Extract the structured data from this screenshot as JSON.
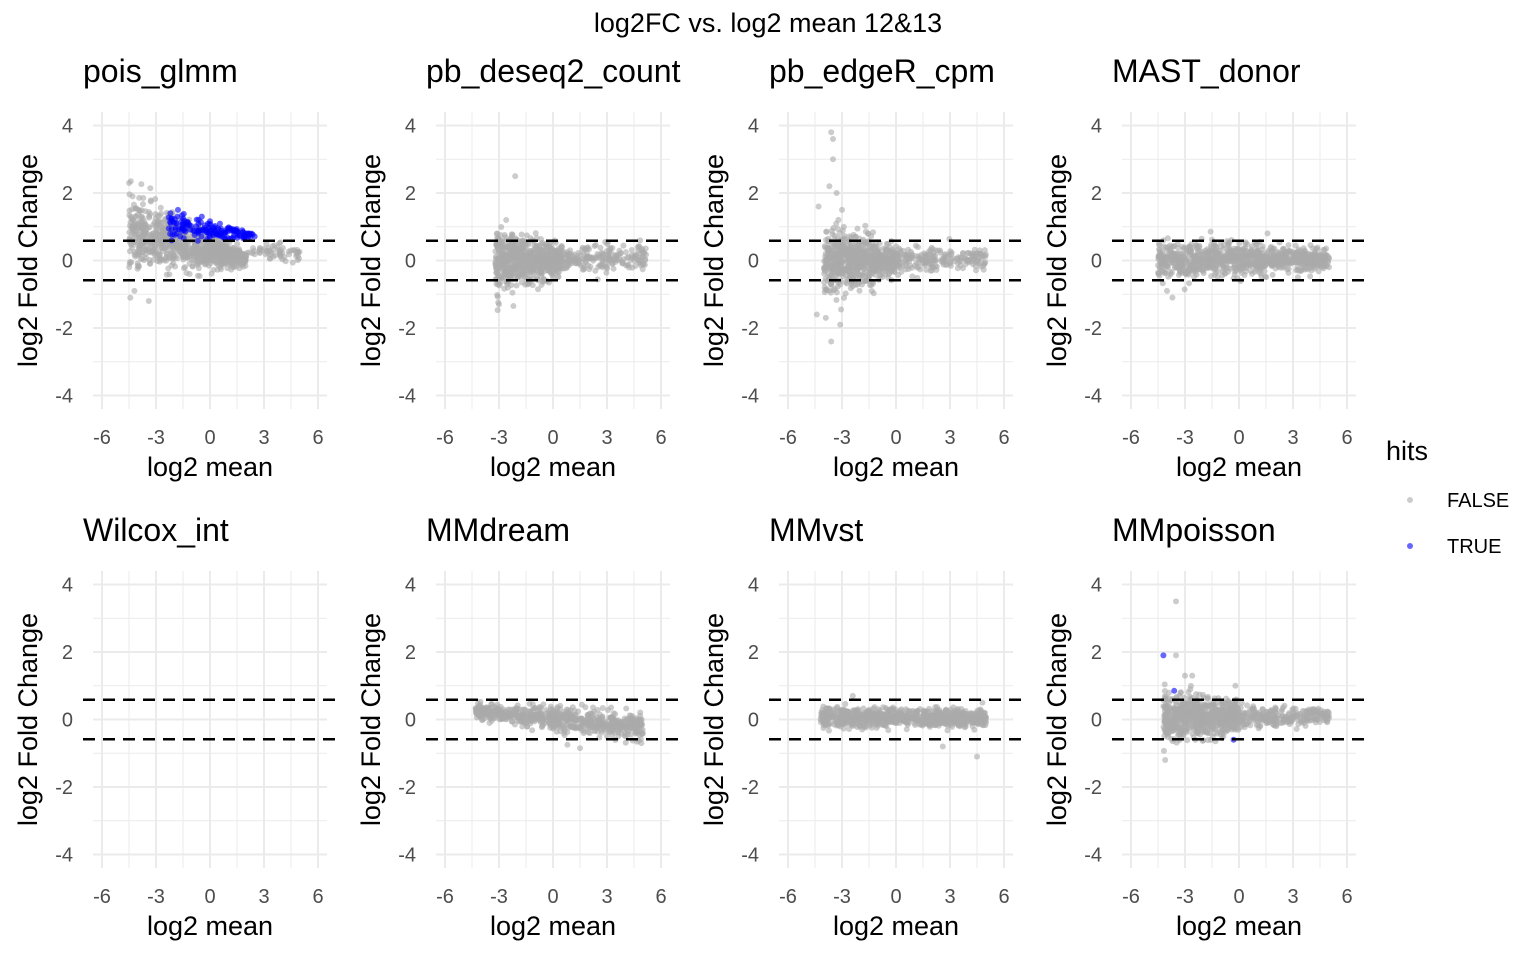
{
  "title": "log2FC vs. log2 mean  12&13",
  "colors": {
    "false_points": "#aaaaaa",
    "true_points": "#0000ff",
    "grid": "#ebebeb",
    "text": "#000000",
    "tick_text": "#4d4d4d"
  },
  "chart_data": {
    "type": "scatter",
    "facet_layout": "2 rows x 4 columns",
    "xlabel": "log2 mean",
    "ylabel": "log2 Fold Change",
    "xlim": [
      -6.5,
      6.5
    ],
    "ylim": [
      -4.4,
      4.4
    ],
    "x_ticks": [
      -6,
      -3,
      0,
      3,
      6
    ],
    "y_ticks": [
      -4,
      -2,
      0,
      2,
      4
    ],
    "x_tick_labels": [
      "-6",
      "-3",
      "0",
      "3",
      "6"
    ],
    "y_tick_labels": [
      "-4",
      "-2",
      "0",
      "2",
      "4"
    ],
    "grid": true,
    "threshold_lines": [
      0.585,
      -0.585
    ],
    "legend": {
      "title": "hits",
      "position": "right",
      "items": [
        {
          "label": "FALSE",
          "color": "#aaaaaa"
        },
        {
          "label": "TRUE",
          "color": "#0000ff"
        }
      ]
    },
    "panels": [
      {
        "name": "pois_glmm",
        "clouds": [
          {
            "hit": false,
            "x_range": [
              -4.5,
              2.0
            ],
            "fc_center": [
              0.8,
              0.05
            ],
            "fc_spread": [
              0.55,
              0.1
            ],
            "density": 900
          },
          {
            "hit": false,
            "x_range": [
              2.0,
              5.0
            ],
            "fc_center": [
              0.25,
              0.25
            ],
            "fc_spread": [
              0.12,
              0.12
            ],
            "density": 60
          },
          {
            "hit": true,
            "x_range": [
              -2.3,
              2.5
            ],
            "fc_center": [
              1.05,
              0.7
            ],
            "fc_spread": [
              0.25,
              0.05
            ],
            "density": 160
          }
        ],
        "points": [
          {
            "x": -4.4,
            "y": 2.35,
            "hit": false
          },
          {
            "x": -4.3,
            "y": 1.9,
            "hit": false
          },
          {
            "x": -3.4,
            "y": -1.2,
            "hit": false
          },
          {
            "x": -4.2,
            "y": -0.9,
            "hit": false
          },
          {
            "x": -2.2,
            "y": 1.4,
            "hit": true
          },
          {
            "x": 4.5,
            "y": 0.3,
            "hit": false
          },
          {
            "x": 4.8,
            "y": 0.2,
            "hit": false
          }
        ]
      },
      {
        "name": "pb_deseq2_count",
        "clouds": [
          {
            "hit": false,
            "x_range": [
              -3.2,
              0.5
            ],
            "fc_center": [
              0.0,
              0.0
            ],
            "fc_spread": [
              0.45,
              0.2
            ],
            "density": 700
          },
          {
            "hit": false,
            "x_range": [
              0.5,
              5.2
            ],
            "fc_center": [
              0.0,
              0.1
            ],
            "fc_spread": [
              0.2,
              0.2
            ],
            "density": 200
          }
        ],
        "points": [
          {
            "x": -2.1,
            "y": 2.5,
            "hit": false
          },
          {
            "x": -2.6,
            "y": 1.2,
            "hit": false
          },
          {
            "x": -3.0,
            "y": -1.3,
            "hit": false
          },
          {
            "x": -2.2,
            "y": -1.35,
            "hit": false
          },
          {
            "x": 4.8,
            "y": 0.4,
            "hit": false
          },
          {
            "x": 5.0,
            "y": 0.1,
            "hit": false
          }
        ]
      },
      {
        "name": "pb_edgeR_cpm",
        "clouds": [
          {
            "hit": false,
            "x_range": [
              -4.0,
              0.0
            ],
            "fc_center": [
              0.0,
              0.0
            ],
            "fc_spread": [
              0.5,
              0.2
            ],
            "density": 750
          },
          {
            "hit": false,
            "x_range": [
              0.0,
              5.0
            ],
            "fc_center": [
              0.0,
              0.05
            ],
            "fc_spread": [
              0.2,
              0.15
            ],
            "density": 200
          }
        ],
        "points": [
          {
            "x": -3.6,
            "y": 3.8,
            "hit": false
          },
          {
            "x": -3.5,
            "y": 3.6,
            "hit": false
          },
          {
            "x": -3.5,
            "y": 3.0,
            "hit": false
          },
          {
            "x": -3.7,
            "y": 2.2,
            "hit": false
          },
          {
            "x": -3.3,
            "y": 2.0,
            "hit": false
          },
          {
            "x": -4.3,
            "y": 1.6,
            "hit": false
          },
          {
            "x": -3.0,
            "y": 1.5,
            "hit": false
          },
          {
            "x": -3.9,
            "y": -1.7,
            "hit": false
          },
          {
            "x": -3.6,
            "y": -2.4,
            "hit": false
          },
          {
            "x": -3.1,
            "y": -1.9,
            "hit": false
          },
          {
            "x": -4.4,
            "y": -1.6,
            "hit": false
          },
          {
            "x": 4.5,
            "y": 0.2,
            "hit": false
          }
        ]
      },
      {
        "name": "MAST_donor",
        "clouds": [
          {
            "hit": false,
            "x_range": [
              -4.5,
              5.0
            ],
            "fc_center": [
              0.0,
              0.05
            ],
            "fc_spread": [
              0.3,
              0.15
            ],
            "density": 900
          }
        ],
        "points": [
          {
            "x": -4.2,
            "y": 0.6,
            "hit": false
          },
          {
            "x": -3.7,
            "y": -1.1,
            "hit": false
          },
          {
            "x": -4.0,
            "y": -0.9,
            "hit": false
          },
          {
            "x": 5.0,
            "y": -0.2,
            "hit": false
          }
        ]
      },
      {
        "name": "Wilcox_int",
        "clouds": [],
        "points": []
      },
      {
        "name": "MMdream",
        "clouds": [
          {
            "hit": false,
            "x_range": [
              -4.3,
              5.0
            ],
            "fc_center": [
              0.25,
              -0.25
            ],
            "fc_spread": [
              0.12,
              0.2
            ],
            "density": 700
          }
        ],
        "points": [
          {
            "x": 1.5,
            "y": -0.85,
            "hit": false
          },
          {
            "x": 0.8,
            "y": -0.75,
            "hit": false
          },
          {
            "x": 4.8,
            "y": 0.0,
            "hit": false
          }
        ]
      },
      {
        "name": "MMvst",
        "clouds": [
          {
            "hit": false,
            "x_range": [
              -4.2,
              5.0
            ],
            "fc_center": [
              0.05,
              0.05
            ],
            "fc_spread": [
              0.15,
              0.12
            ],
            "density": 800
          }
        ],
        "points": [
          {
            "x": -2.4,
            "y": 0.7,
            "hit": false
          },
          {
            "x": 4.5,
            "y": -1.1,
            "hit": false
          },
          {
            "x": 2.6,
            "y": -0.8,
            "hit": false
          },
          {
            "x": 4.8,
            "y": 0.5,
            "hit": false
          }
        ]
      },
      {
        "name": "MMpoisson",
        "clouds": [
          {
            "hit": false,
            "x_range": [
              -4.2,
              0.0
            ],
            "fc_center": [
              0.1,
              0.05
            ],
            "fc_spread": [
              0.4,
              0.2
            ],
            "density": 700
          },
          {
            "hit": false,
            "x_range": [
              0.0,
              5.0
            ],
            "fc_center": [
              0.05,
              0.1
            ],
            "fc_spread": [
              0.15,
              0.12
            ],
            "density": 250
          }
        ],
        "points": [
          {
            "x": -3.5,
            "y": 3.5,
            "hit": false
          },
          {
            "x": -3.5,
            "y": 1.9,
            "hit": false
          },
          {
            "x": -3.0,
            "y": 1.3,
            "hit": false
          },
          {
            "x": -2.6,
            "y": 1.3,
            "hit": false
          },
          {
            "x": -0.2,
            "y": 1.0,
            "hit": false
          },
          {
            "x": -4.1,
            "y": -1.2,
            "hit": false
          },
          {
            "x": -4.2,
            "y": 1.9,
            "hit": true
          },
          {
            "x": -3.6,
            "y": 0.85,
            "hit": true
          },
          {
            "x": -0.3,
            "y": -0.6,
            "hit": true
          },
          {
            "x": 5.0,
            "y": 0.1,
            "hit": false
          }
        ]
      }
    ]
  }
}
